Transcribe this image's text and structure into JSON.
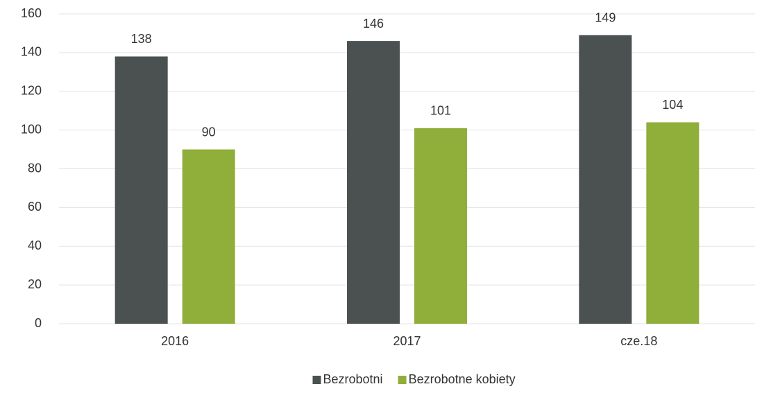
{
  "chart_data": {
    "type": "bar",
    "categories": [
      "2016",
      "2017",
      "cze.18"
    ],
    "series": [
      {
        "name": "Bezrobotni",
        "color": "#4b5150",
        "values": [
          138,
          146,
          149
        ]
      },
      {
        "name": "Bezrobotne kobiety",
        "color": "#8fae3a",
        "values": [
          90,
          101,
          104
        ]
      }
    ],
    "ylim": [
      0,
      160
    ],
    "yticks": [
      0,
      20,
      40,
      60,
      80,
      100,
      120,
      140,
      160
    ],
    "grid": true,
    "legend": "bottom"
  }
}
